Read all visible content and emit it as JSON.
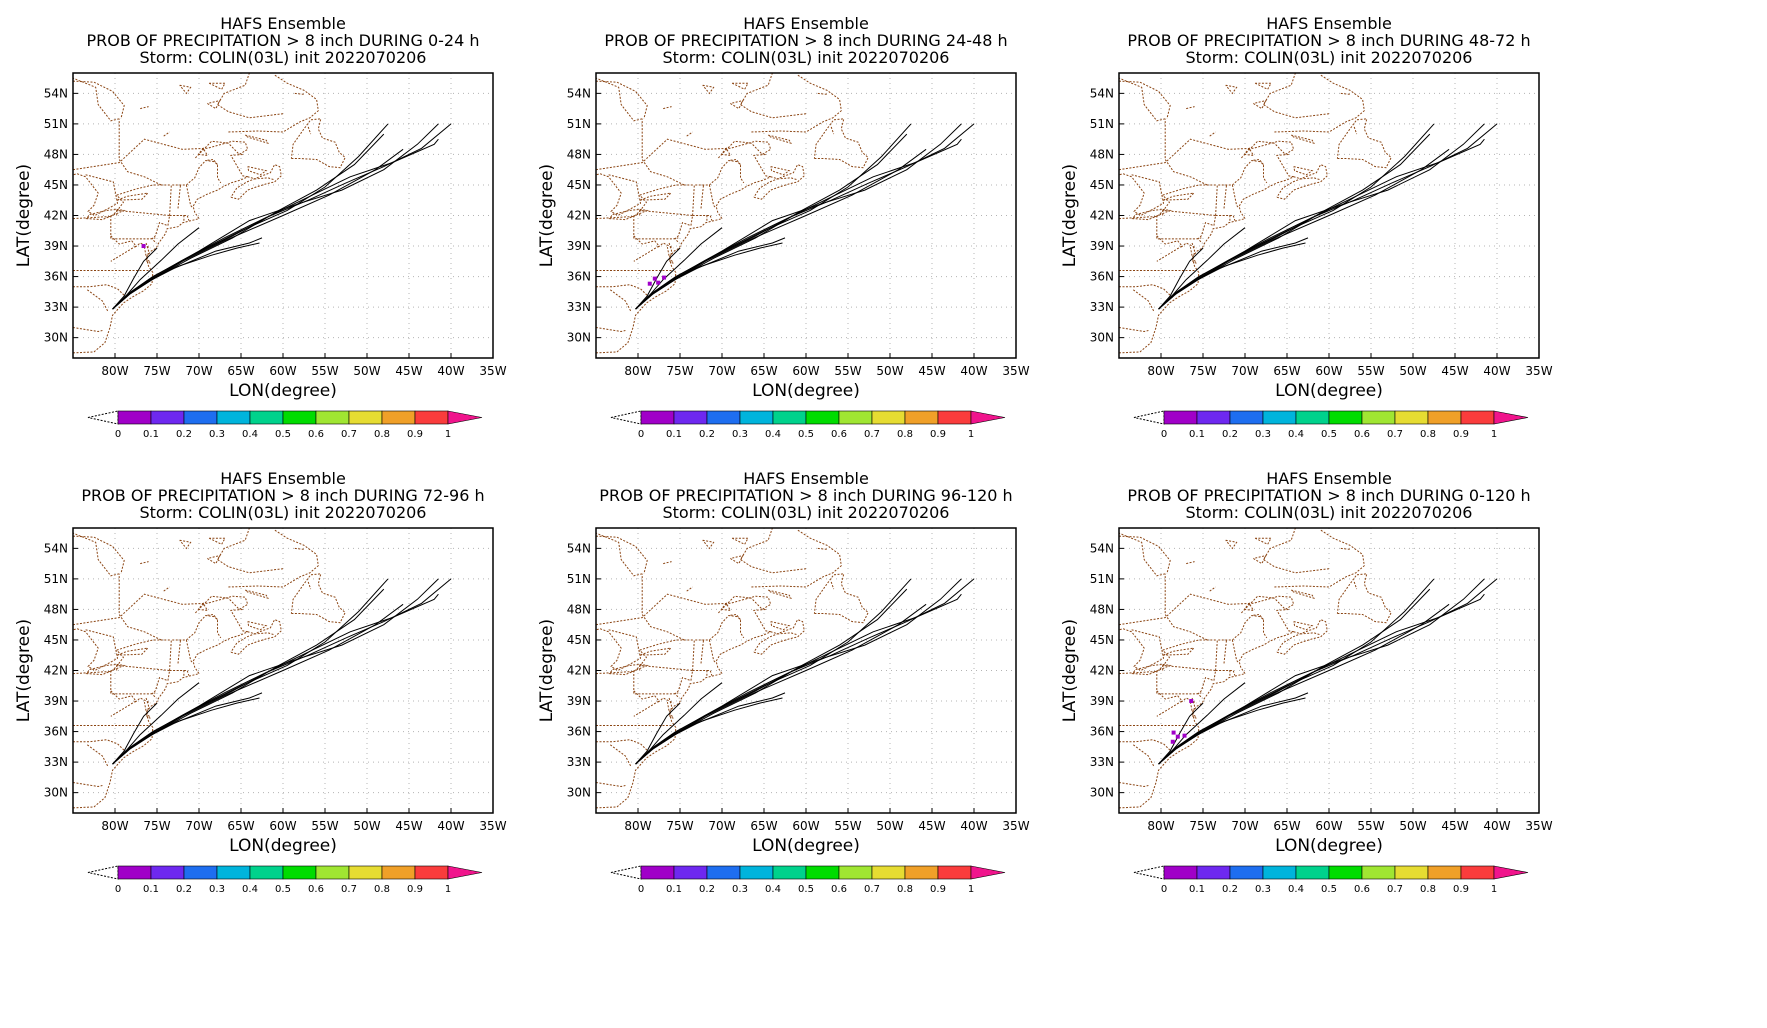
{
  "panels": [
    {
      "title": "HAFS Ensemble",
      "subtitle": "PROB OF PRECIPITATION > 8 inch DURING  0-24 h",
      "storm": "Storm: COLIN(03L) init 2022070206",
      "precip_points": [
        {
          "lon": -76.6,
          "lat": 39.0,
          "p": 0.05
        }
      ]
    },
    {
      "title": "HAFS Ensemble",
      "subtitle": "PROB OF PRECIPITATION > 8 inch DURING 24-48 h",
      "storm": "Storm: COLIN(03L) init 2022070206",
      "precip_points": [
        {
          "lon": -78.6,
          "lat": 35.3,
          "p": 0.05
        },
        {
          "lon": -78.0,
          "lat": 35.8,
          "p": 0.05
        },
        {
          "lon": -77.6,
          "lat": 35.4,
          "p": 0.05
        },
        {
          "lon": -76.9,
          "lat": 35.9,
          "p": 0.05
        }
      ]
    },
    {
      "title": "HAFS Ensemble",
      "subtitle": "PROB OF PRECIPITATION > 8 inch DURING 48-72 h",
      "storm": "Storm: COLIN(03L) init 2022070206",
      "precip_points": []
    },
    {
      "title": "HAFS Ensemble",
      "subtitle": "PROB OF PRECIPITATION > 8 inch DURING 72-96 h",
      "storm": "Storm: COLIN(03L) init 2022070206",
      "precip_points": []
    },
    {
      "title": "HAFS Ensemble",
      "subtitle": "PROB OF PRECIPITATION > 8 inch DURING 96-120 h",
      "storm": "Storm: COLIN(03L) init 2022070206",
      "precip_points": []
    },
    {
      "title": "HAFS Ensemble",
      "subtitle": "PROB OF PRECIPITATION > 8 inch DURING 0-120 h",
      "storm": "Storm: COLIN(03L) init 2022070206",
      "precip_points": [
        {
          "lon": -78.5,
          "lat": 35.9,
          "p": 0.05
        },
        {
          "lon": -78.0,
          "lat": 35.5,
          "p": 0.05
        },
        {
          "lon": -77.2,
          "lat": 35.6,
          "p": 0.05
        },
        {
          "lon": -78.6,
          "lat": 35.0,
          "p": 0.05
        },
        {
          "lon": -76.4,
          "lat": 39.0,
          "p": 0.05
        }
      ]
    }
  ],
  "axes": {
    "xlabel": "LON(degree)",
    "ylabel": "LAT(degree)",
    "lon_range": [
      -85,
      -35
    ],
    "lat_range": [
      28,
      56
    ],
    "lon_ticks": [
      -80,
      -75,
      -70,
      -65,
      -60,
      -55,
      -50,
      -45,
      -40,
      -35
    ],
    "lon_tick_labels": [
      "80W",
      "75W",
      "70W",
      "65W",
      "60W",
      "55W",
      "50W",
      "45W",
      "40W",
      "35W"
    ],
    "lat_ticks": [
      30,
      33,
      36,
      39,
      42,
      45,
      48,
      51,
      54
    ],
    "lat_tick_labels": [
      "30N",
      "33N",
      "36N",
      "39N",
      "42N",
      "45N",
      "48N",
      "51N",
      "54N"
    ],
    "grid": true,
    "grid_style": "dotted"
  },
  "colorbar": {
    "labels": [
      "0",
      "0.1",
      "0.2",
      "0.3",
      "0.4",
      "0.5",
      "0.6",
      "0.7",
      "0.8",
      "0.9",
      "1"
    ],
    "colors": [
      "#a000c8",
      "#6e28f0",
      "#1e6ef0",
      "#00b4dc",
      "#00d28c",
      "#00dc00",
      "#a0e632",
      "#e6dc32",
      "#f0a028",
      "#fa3c3c"
    ],
    "over_color": "#f0148c",
    "under_color": "#ffffff"
  },
  "colors": {
    "coast": "#8b4513",
    "track": "#000000",
    "grid": "#b4b4b4"
  },
  "tracks": [
    [
      [
        -80.3,
        32.8
      ],
      [
        -78.5,
        34.2
      ],
      [
        -76.0,
        35.6
      ],
      [
        -72.0,
        37.5
      ],
      [
        -67.0,
        39.5
      ],
      [
        -60.0,
        42.0
      ],
      [
        -54.5,
        44.0
      ],
      [
        -49.0,
        46.5
      ],
      [
        -45.7,
        48.5
      ]
    ],
    [
      [
        -80.3,
        32.8
      ],
      [
        -78.0,
        34.5
      ],
      [
        -75.0,
        36.2
      ],
      [
        -70.0,
        38.5
      ],
      [
        -64.0,
        41.5
      ],
      [
        -58.0,
        43.2
      ],
      [
        -53.0,
        44.5
      ],
      [
        -48.0,
        46.5
      ],
      [
        -44.0,
        49.0
      ],
      [
        -41.5,
        51.0
      ]
    ],
    [
      [
        -80.3,
        32.8
      ],
      [
        -78.3,
        34.4
      ],
      [
        -75.5,
        36.0
      ],
      [
        -71.0,
        38.0
      ],
      [
        -65.0,
        40.5
      ],
      [
        -59.5,
        42.5
      ],
      [
        -55.0,
        44.8
      ],
      [
        -51.0,
        47.8
      ],
      [
        -47.5,
        51.0
      ]
    ],
    [
      [
        -80.3,
        32.8
      ],
      [
        -78.2,
        34.3
      ],
      [
        -75.2,
        35.9
      ],
      [
        -71.0,
        37.8
      ],
      [
        -66.0,
        39.8
      ],
      [
        -60.5,
        42.5
      ],
      [
        -56.0,
        44.5
      ],
      [
        -51.5,
        47.0
      ],
      [
        -48.0,
        50.0
      ]
    ],
    [
      [
        -80.3,
        32.8
      ],
      [
        -78.8,
        34.0
      ],
      [
        -76.5,
        35.3
      ],
      [
        -73.0,
        36.8
      ],
      [
        -68.0,
        38.5
      ],
      [
        -64.0,
        39.3
      ],
      [
        -62.5,
        39.8
      ]
    ],
    [
      [
        -80.3,
        32.8
      ],
      [
        -78.6,
        34.1
      ],
      [
        -76.3,
        35.5
      ],
      [
        -72.5,
        37.0
      ],
      [
        -68.5,
        38.1
      ],
      [
        -65.5,
        38.8
      ],
      [
        -62.8,
        39.3
      ]
    ],
    [
      [
        -80.3,
        32.8
      ],
      [
        -78.6,
        34.2
      ],
      [
        -77.0,
        35.7
      ],
      [
        -74.5,
        37.6
      ],
      [
        -72.5,
        39.2
      ],
      [
        -70.0,
        40.8
      ]
    ],
    [
      [
        -80.3,
        32.8
      ],
      [
        -78.9,
        34.1
      ],
      [
        -77.8,
        35.8
      ],
      [
        -76.6,
        37.5
      ],
      [
        -75.0,
        38.8
      ]
    ],
    [
      [
        -80.3,
        32.8
      ],
      [
        -78.4,
        34.3
      ],
      [
        -75.8,
        35.8
      ],
      [
        -72.0,
        37.6
      ],
      [
        -67.0,
        39.8
      ],
      [
        -62.0,
        41.8
      ],
      [
        -57.0,
        43.5
      ],
      [
        -52.5,
        45.2
      ],
      [
        -48.0,
        46.8
      ],
      [
        -43.5,
        48.6
      ],
      [
        -40.0,
        51.0
      ]
    ],
    [
      [
        -80.3,
        32.8
      ],
      [
        -78.1,
        34.4
      ],
      [
        -75.0,
        36.0
      ],
      [
        -71.0,
        38.0
      ],
      [
        -66.0,
        40.0
      ],
      [
        -61.5,
        42.0
      ],
      [
        -56.5,
        44.0
      ],
      [
        -52.0,
        45.8
      ],
      [
        -47.0,
        47.2
      ],
      [
        -42.0,
        49.0
      ],
      [
        -41.5,
        49.5
      ]
    ]
  ]
}
